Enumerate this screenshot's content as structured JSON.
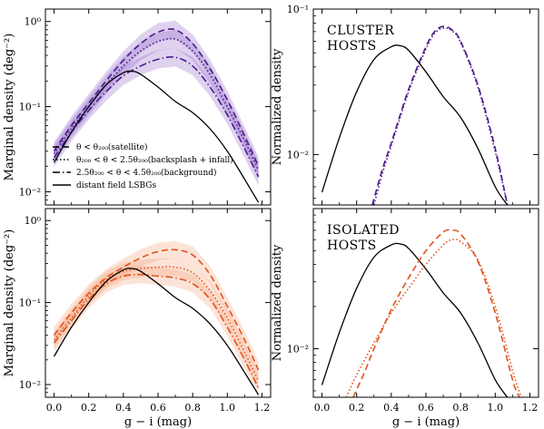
{
  "chart_data": [
    {
      "type": "line",
      "panel": "top-left",
      "ylabel": "Marginal density (deg⁻²)",
      "yscale": "log",
      "ylim": [
        0.007,
        1.4
      ],
      "xlim": [
        -0.05,
        1.25
      ],
      "xticks": [
        "0.0",
        "0.2",
        "0.4",
        "0.6",
        "0.8",
        "1.0",
        "1.2"
      ],
      "yticks": [
        {
          "v": 0.01,
          "label": "10⁻²"
        },
        {
          "v": 0.1,
          "label": "10⁻¹"
        },
        {
          "v": 1,
          "label": "10⁰"
        }
      ],
      "show_xtick_labels": false,
      "band_color": "#8a5cc4",
      "series": [
        {
          "name": "θ < θ₂₀₀(satellite)",
          "style": "dashed",
          "color": "#4b1a8c",
          "x": [
            0.0,
            0.1,
            0.2,
            0.3,
            0.4,
            0.5,
            0.6,
            0.7,
            0.8,
            0.9,
            1.0,
            1.1,
            1.18
          ],
          "y": [
            0.03,
            0.06,
            0.11,
            0.2,
            0.35,
            0.55,
            0.75,
            0.8,
            0.55,
            0.28,
            0.12,
            0.045,
            0.02
          ]
        },
        {
          "name": "θ₂₀₀ < θ < 2.5θ₂₀₀(backsplash + infall)",
          "style": "dotted",
          "color": "#4b1a8c",
          "x": [
            0.0,
            0.1,
            0.2,
            0.3,
            0.4,
            0.5,
            0.6,
            0.7,
            0.8,
            0.9,
            1.0,
            1.1,
            1.18
          ],
          "y": [
            0.028,
            0.055,
            0.1,
            0.18,
            0.3,
            0.45,
            0.58,
            0.62,
            0.45,
            0.24,
            0.1,
            0.04,
            0.018
          ]
        },
        {
          "name": "2.5θ₂₀₀ < θ < 4.5θ₂₀₀(background)",
          "style": "dashdot",
          "color": "#4b1a8c",
          "x": [
            0.0,
            0.1,
            0.2,
            0.3,
            0.4,
            0.5,
            0.6,
            0.7,
            0.8,
            0.9,
            1.0,
            1.1,
            1.18
          ],
          "y": [
            0.025,
            0.05,
            0.09,
            0.15,
            0.23,
            0.3,
            0.36,
            0.38,
            0.3,
            0.17,
            0.08,
            0.032,
            0.015
          ]
        },
        {
          "name": "distant field LSBGs",
          "style": "solid",
          "color": "#000000",
          "x": [
            0.0,
            0.1,
            0.2,
            0.3,
            0.4,
            0.45,
            0.5,
            0.6,
            0.7,
            0.8,
            0.9,
            1.0,
            1.1,
            1.18
          ],
          "y": [
            0.022,
            0.05,
            0.1,
            0.18,
            0.25,
            0.26,
            0.24,
            0.17,
            0.115,
            0.085,
            0.055,
            0.03,
            0.014,
            0.0075
          ]
        }
      ]
    },
    {
      "type": "line",
      "panel": "top-right",
      "ylabel": "Normalized density",
      "yscale": "log",
      "ylim": [
        0.0045,
        0.1
      ],
      "xlim": [
        -0.05,
        1.25
      ],
      "xticks": [
        "0.0",
        "0.2",
        "0.4",
        "0.6",
        "0.8",
        "1.0",
        "1.2"
      ],
      "yticks": [
        {
          "v": 0.01,
          "label": "10⁻²"
        },
        {
          "v": 0.1,
          "label": "10⁻¹"
        }
      ],
      "show_xtick_labels": false,
      "annotation": [
        "CLUSTER",
        "HOSTS"
      ],
      "series": [
        {
          "style": "solid",
          "color": "#000000",
          "x": [
            0.0,
            0.1,
            0.2,
            0.3,
            0.4,
            0.45,
            0.5,
            0.6,
            0.7,
            0.8,
            0.9,
            1.0,
            1.07
          ],
          "y": [
            0.0055,
            0.013,
            0.027,
            0.045,
            0.055,
            0.056,
            0.052,
            0.037,
            0.025,
            0.018,
            0.011,
            0.006,
            0.0045
          ]
        },
        {
          "style": "dashed",
          "color": "#4b1a8c",
          "x": [
            0.29,
            0.35,
            0.4,
            0.5,
            0.6,
            0.65,
            0.7,
            0.75,
            0.8,
            0.9,
            1.0,
            1.07
          ],
          "y": [
            0.0045,
            0.008,
            0.012,
            0.028,
            0.055,
            0.07,
            0.076,
            0.072,
            0.06,
            0.03,
            0.011,
            0.0045
          ]
        },
        {
          "style": "dotted",
          "color": "#4b1a8c",
          "x": [
            0.3,
            0.35,
            0.4,
            0.5,
            0.6,
            0.65,
            0.7,
            0.75,
            0.8,
            0.9,
            1.0,
            1.07
          ],
          "y": [
            0.0045,
            0.0075,
            0.0115,
            0.027,
            0.053,
            0.068,
            0.074,
            0.071,
            0.059,
            0.029,
            0.0105,
            0.0045
          ]
        }
      ]
    },
    {
      "type": "line",
      "panel": "bottom-left",
      "ylabel": "Marginal density (deg⁻²)",
      "xlabel": "g − i (mag)",
      "yscale": "log",
      "ylim": [
        0.007,
        1.4
      ],
      "xlim": [
        -0.05,
        1.25
      ],
      "xticks": [
        "0.0",
        "0.2",
        "0.4",
        "0.6",
        "0.8",
        "1.0",
        "1.2"
      ],
      "yticks": [
        {
          "v": 0.01,
          "label": "10⁻²"
        },
        {
          "v": 0.1,
          "label": "10⁻¹"
        },
        {
          "v": 1,
          "label": "10⁰"
        }
      ],
      "show_xtick_labels": true,
      "band_color": "#f39a70",
      "series": [
        {
          "style": "dashed",
          "color": "#e0521c",
          "x": [
            0.0,
            0.1,
            0.2,
            0.3,
            0.4,
            0.5,
            0.6,
            0.7,
            0.8,
            0.9,
            1.0,
            1.1,
            1.18
          ],
          "y": [
            0.04,
            0.075,
            0.13,
            0.2,
            0.27,
            0.35,
            0.42,
            0.44,
            0.38,
            0.22,
            0.09,
            0.035,
            0.015
          ]
        },
        {
          "style": "dotted",
          "color": "#e0521c",
          "x": [
            0.0,
            0.1,
            0.2,
            0.3,
            0.4,
            0.5,
            0.6,
            0.7,
            0.8,
            0.9,
            1.0,
            1.1,
            1.18
          ],
          "y": [
            0.035,
            0.065,
            0.12,
            0.19,
            0.24,
            0.26,
            0.27,
            0.27,
            0.23,
            0.14,
            0.065,
            0.025,
            0.011
          ]
        },
        {
          "style": "dashdot",
          "color": "#e0521c",
          "x": [
            0.0,
            0.1,
            0.2,
            0.3,
            0.4,
            0.5,
            0.6,
            0.7,
            0.8,
            0.9,
            1.0,
            1.1,
            1.18
          ],
          "y": [
            0.032,
            0.06,
            0.11,
            0.17,
            0.21,
            0.22,
            0.21,
            0.2,
            0.17,
            0.11,
            0.05,
            0.02,
            0.009
          ]
        },
        {
          "style": "solid",
          "color": "#000000",
          "x": [
            0.0,
            0.1,
            0.2,
            0.3,
            0.4,
            0.45,
            0.5,
            0.6,
            0.7,
            0.8,
            0.9,
            1.0,
            1.1,
            1.18
          ],
          "y": [
            0.022,
            0.05,
            0.1,
            0.18,
            0.25,
            0.26,
            0.24,
            0.17,
            0.115,
            0.085,
            0.055,
            0.03,
            0.014,
            0.0075
          ]
        }
      ]
    },
    {
      "type": "line",
      "panel": "bottom-right",
      "ylabel": "Normalized density",
      "xlabel": "g − i (mag)",
      "yscale": "log",
      "ylim": [
        0.0045,
        0.1
      ],
      "xlim": [
        -0.05,
        1.25
      ],
      "xticks": [
        "0.0",
        "0.2",
        "0.4",
        "0.6",
        "0.8",
        "1.0",
        "1.2"
      ],
      "yticks": [
        {
          "v": 0.01,
          "label": "10⁻²"
        }
      ],
      "show_xtick_labels": true,
      "annotation": [
        "ISOLATED",
        "HOSTS"
      ],
      "series": [
        {
          "style": "solid",
          "color": "#000000",
          "x": [
            0.0,
            0.1,
            0.2,
            0.3,
            0.4,
            0.45,
            0.5,
            0.6,
            0.7,
            0.8,
            0.9,
            1.0,
            1.07
          ],
          "y": [
            0.0055,
            0.013,
            0.027,
            0.045,
            0.055,
            0.056,
            0.052,
            0.037,
            0.025,
            0.018,
            0.011,
            0.006,
            0.0045
          ]
        },
        {
          "style": "dashed",
          "color": "#e0521c",
          "x": [
            0.18,
            0.25,
            0.3,
            0.4,
            0.5,
            0.6,
            0.7,
            0.75,
            0.8,
            0.9,
            1.0,
            1.1,
            1.14
          ],
          "y": [
            0.0045,
            0.007,
            0.01,
            0.019,
            0.032,
            0.05,
            0.068,
            0.07,
            0.066,
            0.042,
            0.018,
            0.006,
            0.0045
          ]
        },
        {
          "style": "dotted",
          "color": "#e0521c",
          "x": [
            0.14,
            0.2,
            0.3,
            0.4,
            0.5,
            0.6,
            0.7,
            0.75,
            0.8,
            0.9,
            1.0,
            1.1,
            1.15
          ],
          "y": [
            0.0045,
            0.0065,
            0.011,
            0.018,
            0.027,
            0.04,
            0.055,
            0.06,
            0.058,
            0.043,
            0.02,
            0.007,
            0.0045
          ]
        }
      ]
    }
  ]
}
